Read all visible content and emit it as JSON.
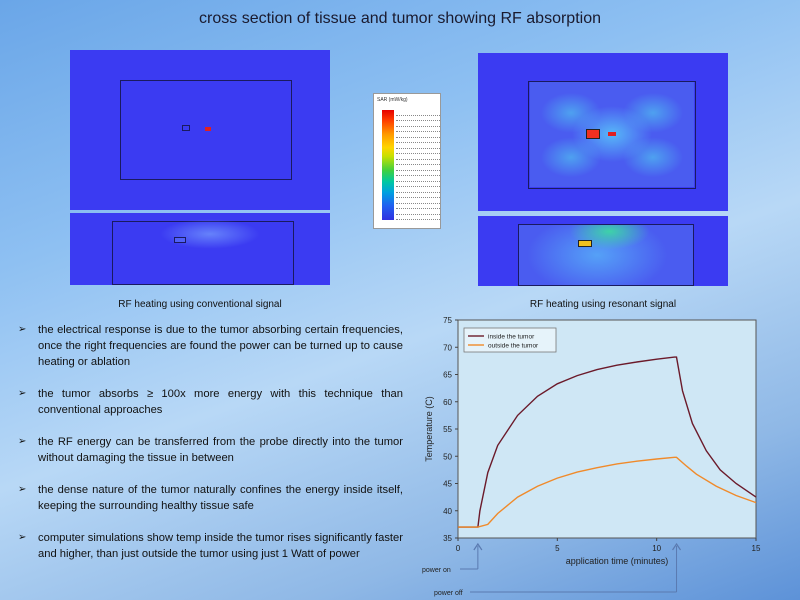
{
  "title": "cross section of tissue and tumor showing RF absorption",
  "captions": {
    "conventional": "RF heating using conventional signal",
    "resonant": "RF heating using resonant signal"
  },
  "legend": {
    "title": "SAR (mW/kg)"
  },
  "bullets": [
    "the electrical response is due to the tumor absorbing certain frequencies, once the right frequencies are found the power can be turned up to cause heating or ablation",
    "the tumor absorbs ≥ 100x more energy with this technique than conventional approaches",
    "the RF energy can be transferred from the probe directly into the tumor without damaging the tissue in between",
    "the dense nature of the tumor naturally confines the energy inside itself, keeping the surrounding healthy tissue safe",
    "computer simulations show temp inside the tumor rises significantly faster and higher, than just outside the tumor using just 1 Watt of power"
  ],
  "bullet_marker": "➢",
  "colors": {
    "background": "#8ec0f2",
    "sim_blue": "#3b3bf2",
    "inside_series": "#6b1a2a",
    "outside_series": "#f08a2a"
  },
  "chart_data": {
    "type": "line",
    "xlabel": "application time (minutes)",
    "ylabel": "Temperature (C)",
    "xlim": [
      0,
      15
    ],
    "ylim": [
      35,
      75
    ],
    "xticks": [
      "0",
      "5",
      "10",
      "15"
    ],
    "yticks": [
      "35",
      "40",
      "45",
      "50",
      "55",
      "60",
      "65",
      "70",
      "75"
    ],
    "legend_position": "top-left",
    "series": [
      {
        "name": "inside the tumor",
        "x": [
          0,
          0.9,
          1.0,
          1.1,
          1.5,
          2,
          3,
          4,
          5,
          6,
          7,
          8,
          9,
          10,
          10.9,
          11.0,
          11.3,
          11.8,
          12.5,
          13.2,
          14,
          15
        ],
        "y": [
          37,
          37,
          37,
          40,
          47,
          52,
          57.5,
          61,
          63.3,
          64.8,
          65.9,
          66.7,
          67.3,
          67.8,
          68.2,
          68.2,
          62,
          56,
          51,
          47.5,
          45,
          42.5
        ]
      },
      {
        "name": "outside the tumor",
        "x": [
          0,
          0.9,
          1.0,
          1.5,
          2,
          3,
          4,
          5,
          6,
          7,
          8,
          9,
          10,
          10.9,
          11.0,
          11.5,
          12,
          13,
          14,
          15
        ],
        "y": [
          37,
          37,
          37,
          37.5,
          39.5,
          42.5,
          44.5,
          46,
          47.1,
          47.9,
          48.6,
          49.1,
          49.5,
          49.8,
          49.8,
          48.2,
          46.7,
          44.5,
          42.8,
          41.5
        ]
      }
    ],
    "annotations": [
      "power on",
      "power off"
    ]
  }
}
